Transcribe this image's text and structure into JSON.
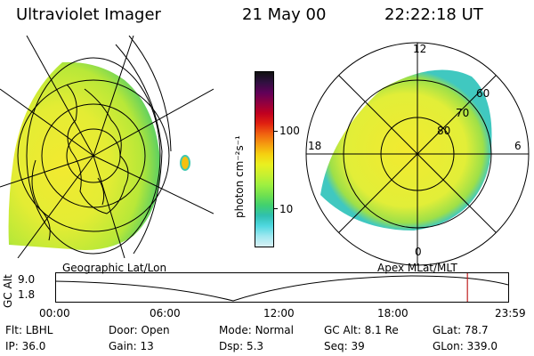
{
  "header": {
    "instrument": "Ultraviolet Imager",
    "date": "21 May 00",
    "time": "22:22:18 UT"
  },
  "left_panel": {
    "caption": "Geographic Lat/Lon"
  },
  "right_panel": {
    "caption": "Apex MLat/MLT",
    "mlt_labels": {
      "top": "12",
      "left": "18",
      "right": "6",
      "bottom": "0"
    },
    "lat_labels": [
      "60",
      "70",
      "80"
    ]
  },
  "colorbar": {
    "unit_label": "photon cm⁻²s⁻¹",
    "tick_labels": [
      "100",
      "10"
    ],
    "colors": [
      "#111111",
      "#301040",
      "#600058",
      "#900040",
      "#c00020",
      "#e02010",
      "#f06010",
      "#f59a10",
      "#f5d010",
      "#eaf020",
      "#c8f030",
      "#9ef040",
      "#70e050",
      "#40d070",
      "#30c0b0",
      "#50d8e0",
      "#a0e8f0",
      "#d8f0f4"
    ]
  },
  "timeline": {
    "axis_label": "GC Alt",
    "y_ticks": [
      "9.0",
      "1.8"
    ],
    "x_ticks": [
      "00:00",
      "06:00",
      "12:00",
      "18:00",
      "23:59"
    ],
    "current_time_fraction": 0.91,
    "marker_color": "#c02020"
  },
  "status": {
    "row1": [
      {
        "label": "Flt:",
        "value": "LBHL"
      },
      {
        "label": "Door:",
        "value": "Open"
      },
      {
        "label": "Mode:",
        "value": "Normal"
      },
      {
        "label": "GC Alt:",
        "value": "8.1 Re"
      },
      {
        "label": "GLat:",
        "value": "78.7"
      }
    ],
    "row2": [
      {
        "label": "IP:",
        "value": "36.0"
      },
      {
        "label": "Gain:",
        "value": "13"
      },
      {
        "label": "Dsp:",
        "value": "5.3"
      },
      {
        "label": "Seq:",
        "value": "39"
      },
      {
        "label": "GLon:",
        "value": "339.0"
      }
    ]
  }
}
